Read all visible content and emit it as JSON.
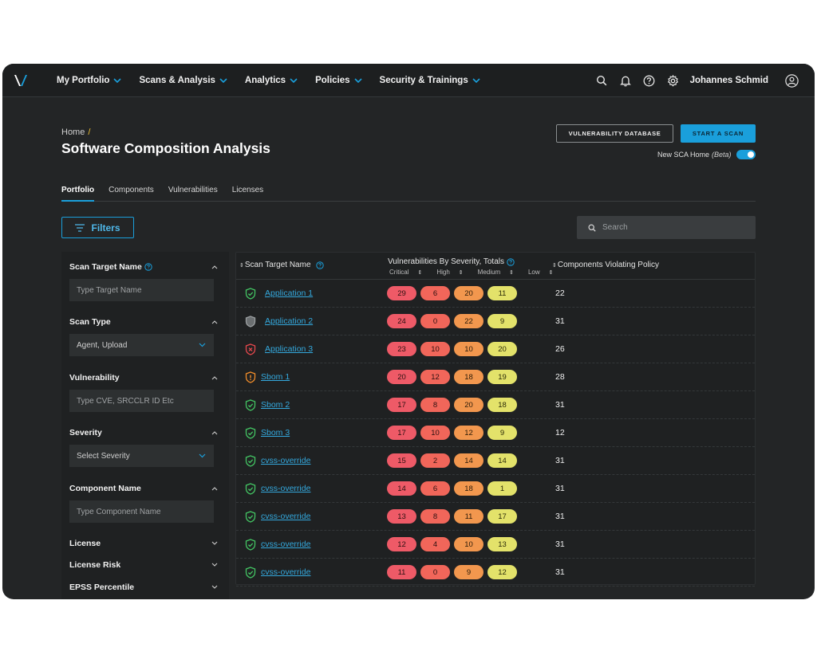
{
  "nav": {
    "items": [
      {
        "label": "My Portfolio"
      },
      {
        "label": "Scans & Analysis"
      },
      {
        "label": "Analytics"
      },
      {
        "label": "Policies"
      },
      {
        "label": "Security & Trainings"
      }
    ],
    "user_name": "Johannes Schmid",
    "accent": "#1a9fdb"
  },
  "header": {
    "breadcrumb_home": "Home",
    "breadcrumb_sep": "/",
    "title": "Software Composition Analysis",
    "vuln_db_button": "VULNERABILITY DATABASE",
    "start_scan_button": "START A SCAN",
    "toggle_label": "New SCA Home",
    "toggle_beta": "(Beta)",
    "toggle_on": true
  },
  "tabs": [
    {
      "label": "Portfolio",
      "active": true
    },
    {
      "label": "Components",
      "active": false
    },
    {
      "label": "Vulnerabilities",
      "active": false
    },
    {
      "label": "Licenses",
      "active": false
    }
  ],
  "toolbar": {
    "filters_label": "Filters",
    "search_placeholder": "Search"
  },
  "filters": {
    "scan_target_name": {
      "title": "Scan Target Name",
      "placeholder": "Type Target Name"
    },
    "scan_type": {
      "title": "Scan Type",
      "value": "Agent, Upload"
    },
    "vulnerability": {
      "title": "Vulnerability",
      "placeholder": "Type CVE, SRCCLR ID Etc"
    },
    "severity": {
      "title": "Severity",
      "value": "Select Severity"
    },
    "component_name": {
      "title": "Component Name",
      "placeholder": "Type Component Name"
    },
    "license": {
      "title": "License"
    },
    "license_risk": {
      "title": "License Risk"
    },
    "epss": {
      "title": "EPSS Percentile"
    }
  },
  "table": {
    "col_name": "Scan Target Name",
    "col_vuln": "Vulnerabilities By Severity, Totals",
    "col_critical": "Critical",
    "col_high": "High",
    "col_medium": "Medium",
    "col_low": "Low",
    "col_comp": "Components Violating Policy",
    "severity_colors": {
      "critical": "#ee5a67",
      "high": "#f1665a",
      "medium": "#f2974e",
      "low": "#e3e26a"
    },
    "rows": [
      {
        "name": "Application 1",
        "status": "ok",
        "critical": "29",
        "high": "6",
        "medium": "20",
        "low": "11",
        "components": "22"
      },
      {
        "name": "Application 2",
        "status": "unknown",
        "critical": "24",
        "high": "0",
        "medium": "22",
        "low": "9",
        "components": "31"
      },
      {
        "name": "Application 3",
        "status": "error",
        "critical": "23",
        "high": "10",
        "medium": "10",
        "low": "20",
        "components": "26"
      },
      {
        "name": "Sbom 1",
        "status": "warning",
        "critical": "20",
        "high": "12",
        "medium": "18",
        "low": "19",
        "components": "28"
      },
      {
        "name": "Sbom 2",
        "status": "ok",
        "critical": "17",
        "high": "8",
        "medium": "20",
        "low": "18",
        "components": "31"
      },
      {
        "name": "Sbom 3",
        "status": "ok",
        "critical": "17",
        "high": "10",
        "medium": "12",
        "low": "9",
        "components": "12"
      },
      {
        "name": "cvss-override",
        "status": "ok",
        "critical": "15",
        "high": "2",
        "medium": "14",
        "low": "14",
        "components": "31"
      },
      {
        "name": "cvss-override",
        "status": "ok",
        "critical": "14",
        "high": "6",
        "medium": "18",
        "low": "1",
        "components": "31"
      },
      {
        "name": "cvss-override",
        "status": "ok",
        "critical": "13",
        "high": "8",
        "medium": "11",
        "low": "17",
        "components": "31"
      },
      {
        "name": "cvss-override",
        "status": "ok",
        "critical": "12",
        "high": "4",
        "medium": "10",
        "low": "13",
        "components": "31"
      },
      {
        "name": "cvss-override",
        "status": "ok",
        "critical": "11",
        "high": "0",
        "medium": "9",
        "low": "12",
        "components": "31"
      }
    ]
  }
}
